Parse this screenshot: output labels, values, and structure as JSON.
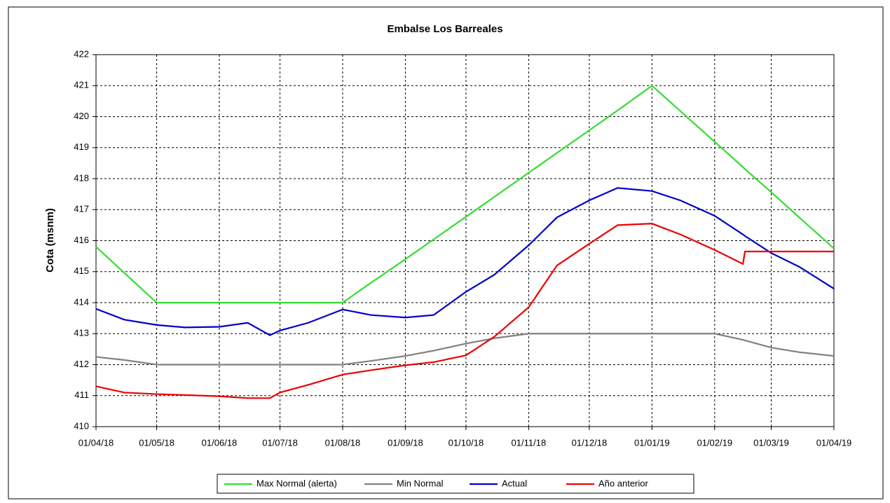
{
  "chart_data": {
    "type": "line",
    "title": "Embalse Los Barreales",
    "y_label": "Cota (msnm)",
    "x": [
      "01/04/18",
      "15/04/18",
      "01/05/18",
      "15/05/18",
      "01/06/18",
      "15/06/18",
      "26/06/18",
      "01/07/18",
      "15/07/18",
      "01/08/18",
      "15/08/18",
      "01/09/18",
      "15/09/18",
      "01/10/18",
      "15/10/18",
      "01/11/18",
      "15/11/18",
      "01/12/18",
      "15/12/18",
      "01/01/19",
      "15/01/19",
      "01/02/19",
      "15/02/19",
      "16/02/19",
      "01/03/19",
      "15/03/19",
      "01/04/19"
    ],
    "series": [
      {
        "name": "Max Normal (alerta)",
        "color": "#33dd33",
        "values": [
          415.8,
          414.96,
          414,
          414,
          414,
          414,
          414,
          414,
          414,
          414,
          414.64,
          415.4,
          416.04,
          416.77,
          417.41,
          418.19,
          418.83,
          419.56,
          420.2,
          421,
          420.18,
          419.19,
          418.37,
          418.31,
          417.56,
          416.74,
          415.75
        ]
      },
      {
        "name": "Min Normal",
        "color": "#808080",
        "values": [
          412.25,
          412.15,
          412,
          412,
          412,
          412,
          412,
          412,
          412,
          412,
          412.12,
          412.28,
          412.45,
          412.68,
          412.85,
          413,
          413,
          413,
          413,
          413,
          413,
          413,
          412.8,
          412.78,
          412.55,
          412.4,
          412.28
        ]
      },
      {
        "name": "Actual",
        "color": "#0000cc",
        "values": [
          413.8,
          413.45,
          413.28,
          413.2,
          413.22,
          413.35,
          412.95,
          413.1,
          413.35,
          413.78,
          413.6,
          413.52,
          413.6,
          414.35,
          414.9,
          415.85,
          416.75,
          417.3,
          417.7,
          417.6,
          417.3,
          416.8,
          416.2,
          416.15,
          415.6,
          415.15,
          414.45
        ]
      },
      {
        "name": "Año anterior",
        "color": "#ee0000",
        "values": [
          411.3,
          411.1,
          411.05,
          411.02,
          410.98,
          410.92,
          410.92,
          411.1,
          411.35,
          411.68,
          411.82,
          411.98,
          412.08,
          412.3,
          412.9,
          413.85,
          415.2,
          415.9,
          416.5,
          416.55,
          416.2,
          415.7,
          415.25,
          415.65,
          415.65,
          415.65,
          415.65
        ]
      }
    ],
    "xlim": [
      "01/04/18",
      "01/04/19"
    ],
    "xticks": [
      "01/04/18",
      "01/05/18",
      "01/06/18",
      "01/07/18",
      "01/08/18",
      "01/09/18",
      "01/10/18",
      "01/11/18",
      "01/12/18",
      "01/01/19",
      "01/02/19",
      "01/03/19",
      "01/04/19"
    ],
    "ylim": [
      410,
      422
    ],
    "yticks": [
      410,
      411,
      412,
      413,
      414,
      415,
      416,
      417,
      418,
      419,
      420,
      421,
      422
    ],
    "grid": true,
    "legend": "bottom"
  }
}
